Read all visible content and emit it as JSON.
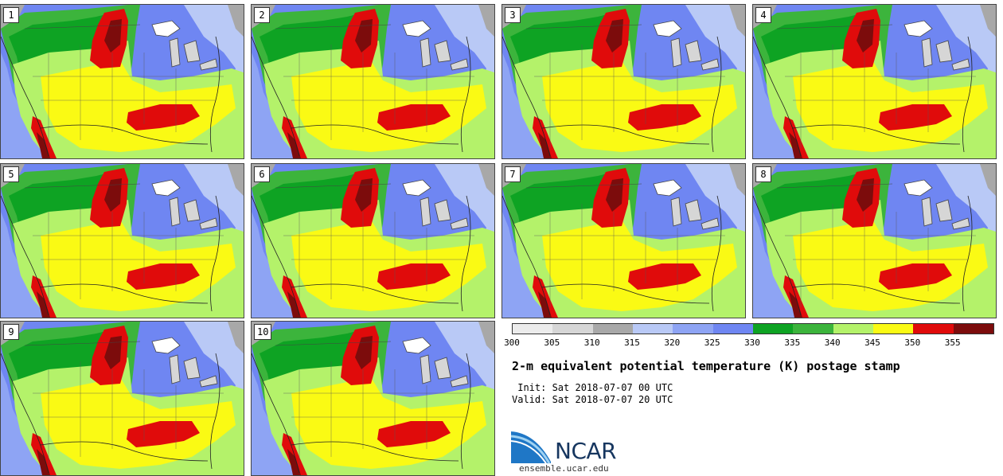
{
  "panels": [
    {
      "label": "1"
    },
    {
      "label": "2"
    },
    {
      "label": "3"
    },
    {
      "label": "4"
    },
    {
      "label": "5"
    },
    {
      "label": "6"
    },
    {
      "label": "7"
    },
    {
      "label": "8"
    },
    {
      "label": "9"
    },
    {
      "label": "10"
    }
  ],
  "colorbar": {
    "colors": [
      "#ececec",
      "#d6d6d6",
      "#a8a8a8",
      "#b9c9f6",
      "#8ea4f4",
      "#6f86f2",
      "#0ea323",
      "#3cb43c",
      "#b4f26a",
      "#fafa14",
      "#e00b0b",
      "#7c0c0c"
    ],
    "ticks": [
      "300",
      "305",
      "310",
      "315",
      "320",
      "325",
      "330",
      "335",
      "340",
      "345",
      "350",
      "355"
    ]
  },
  "title": "2-m equivalent potential temperature (K) postage stamp",
  "init": " Init: Sat 2018-07-07 00 UTC",
  "valid": "Valid: Sat 2018-07-07 20 UTC",
  "logo_text": "NCAR",
  "url": "ensemble.ucar.edu"
}
